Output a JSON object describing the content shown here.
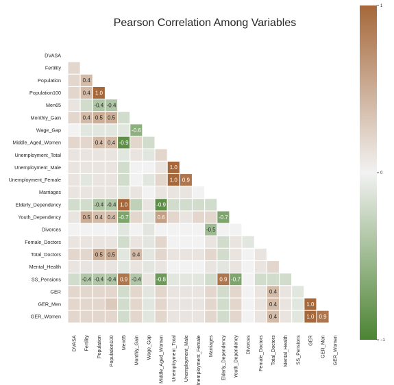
{
  "chart_data": {
    "type": "heatmap",
    "title": "Pearson Correlation Among Variables",
    "variables": [
      "DVASA",
      "Fertility",
      "Population",
      "Population100",
      "Men65",
      "Monthly_Gain",
      "Wage_Gap",
      "Middle_Aged_Women",
      "Unemployment_Total",
      "Unemployment_Male",
      "Unemployment_Female",
      "Marriages",
      "Elderly_Dependency",
      "Youth_Dependency",
      "Divorces",
      "Female_Doctors",
      "Total_Doctors",
      "Mental_Health",
      "SS_Pensions",
      "GER",
      "GER_Men",
      "GER_Women"
    ],
    "lower_triangle": [
      [],
      [
        0.2
      ],
      [
        0.2,
        0.4
      ],
      [
        0.2,
        0.4,
        1.0
      ],
      [
        0.1,
        -0.2,
        -0.4,
        -0.4
      ],
      [
        0.2,
        0.4,
        0.5,
        0.5,
        -0.2
      ],
      [
        0.0,
        -0.1,
        -0.1,
        -0.1,
        -0.1,
        -0.6
      ],
      [
        0.2,
        0.2,
        0.4,
        0.4,
        -0.9,
        0.2,
        -0.2
      ],
      [
        0.1,
        0.1,
        0.1,
        0.1,
        -0.1,
        0.1,
        -0.1,
        0.2
      ],
      [
        0.1,
        0.1,
        0.1,
        0.1,
        -0.2,
        0.0,
        0.0,
        0.1,
        1.0
      ],
      [
        0.1,
        -0.1,
        0.1,
        0.1,
        -0.2,
        0.0,
        -0.1,
        0.2,
        1.0,
        0.9
      ],
      [
        0.1,
        0.1,
        0.1,
        0.1,
        -0.1,
        0.1,
        0.0,
        0.1,
        0.1,
        0.1,
        0.0
      ],
      [
        -0.2,
        -0.2,
        -0.4,
        -0.4,
        1.0,
        -0.3,
        0.1,
        -0.9,
        -0.2,
        -0.2,
        -0.2,
        -0.2
      ],
      [
        0.1,
        0.5,
        0.4,
        0.4,
        -0.7,
        0.2,
        -0.1,
        0.6,
        0.2,
        0.1,
        0.2,
        0.2,
        -0.7
      ],
      [
        0.0,
        0.0,
        0.0,
        0.0,
        -0.1,
        0.0,
        -0.1,
        0.0,
        0.0,
        0.0,
        0.0,
        -0.5,
        0.0,
        0.0
      ],
      [
        0.1,
        0.1,
        0.1,
        0.1,
        -0.2,
        0.1,
        -0.1,
        0.2,
        0.0,
        0.0,
        0.0,
        0.1,
        -0.2,
        0.1,
        -0.1
      ],
      [
        0.2,
        0.2,
        0.5,
        0.5,
        -0.1,
        0.4,
        -0.1,
        0.2,
        0.1,
        0.1,
        0.1,
        0.2,
        -0.2,
        0.1,
        0.0,
        0.1
      ],
      [
        0.1,
        0.1,
        0.1,
        0.1,
        -0.1,
        0.1,
        -0.1,
        0.1,
        0.0,
        0.0,
        0.0,
        0.1,
        -0.1,
        0.1,
        0.0,
        0.1,
        0.2
      ],
      [
        -0.2,
        -0.4,
        -0.4,
        -0.4,
        0.9,
        -0.4,
        0.1,
        -0.8,
        -0.1,
        -0.1,
        -0.1,
        -0.2,
        0.9,
        -0.7,
        0.0,
        -0.2,
        -0.2,
        -0.2
      ],
      [
        0.2,
        0.2,
        0.2,
        0.2,
        -0.2,
        0.2,
        -0.1,
        0.2,
        0.1,
        0.1,
        0.1,
        0.2,
        -0.2,
        0.2,
        0.0,
        0.1,
        0.4,
        0.1,
        -0.1
      ],
      [
        0.2,
        0.2,
        0.2,
        0.3,
        -0.2,
        0.2,
        -0.1,
        0.2,
        0.1,
        0.1,
        0.1,
        0.2,
        -0.2,
        0.2,
        0.0,
        0.1,
        0.4,
        0.1,
        -0.1,
        1.0
      ],
      [
        0.2,
        0.2,
        0.2,
        0.2,
        -0.2,
        0.2,
        -0.1,
        0.2,
        0.1,
        0.1,
        0.1,
        0.2,
        -0.2,
        0.2,
        0.0,
        0.1,
        0.4,
        0.1,
        -0.1,
        1.0,
        0.9
      ]
    ],
    "annotation_threshold": 0.35,
    "value_range": [
      -1,
      1
    ],
    "colorbar": {
      "ticks": [
        {
          "value": 1,
          "label": "1"
        },
        {
          "value": 0,
          "label": "0"
        },
        {
          "value": -1,
          "label": "−1"
        }
      ],
      "color_low": "#4c8433",
      "color_mid": "#f2f2f2",
      "color_high": "#a6683a"
    },
    "mask": "upper-triangle-and-diagonal",
    "grid": false
  }
}
